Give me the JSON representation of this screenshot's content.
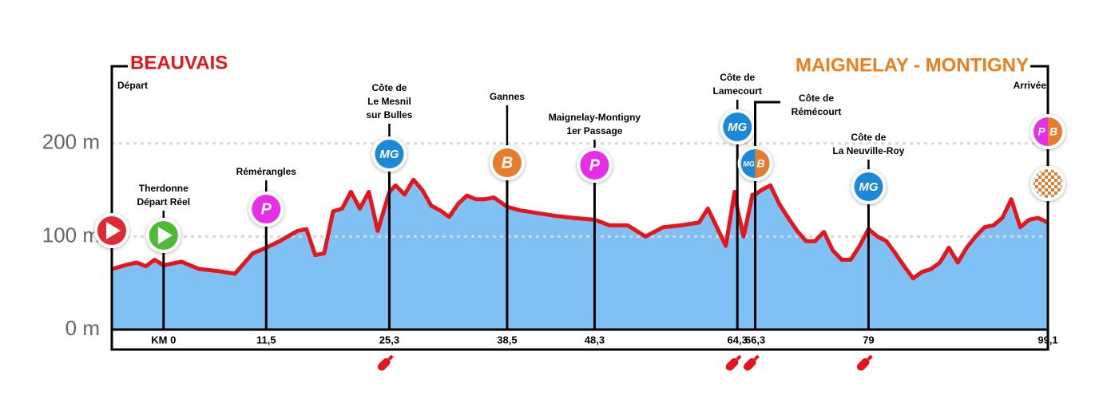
{
  "chart_data": {
    "type": "area",
    "title_left": "BEAUVAIS",
    "title_right": "MAIGNELAY - MONTIGNY",
    "title_left_color": "#e8141c",
    "title_right_color": "#ef7d1a",
    "line_color": "#e8141c",
    "fill_color": "#7fc0f5",
    "xlim": [
      -5.8,
      99.1
    ],
    "ylim": [
      0,
      283
    ],
    "yticks": [
      {
        "value": 0,
        "label": "0 m"
      },
      {
        "value": 100,
        "label": "100 m"
      },
      {
        "value": 200,
        "label": "200 m"
      }
    ],
    "grid": true,
    "xticks": [
      {
        "value": 0,
        "label": "KM 0"
      },
      {
        "value": 11.5,
        "label": "11,5"
      },
      {
        "value": 25.3,
        "label": "25,3"
      },
      {
        "value": 38.5,
        "label": "38,5"
      },
      {
        "value": 48.3,
        "label": "48,3"
      },
      {
        "value": 64.3,
        "label": "64,3"
      },
      {
        "value": 66.3,
        "label": "66,3"
      },
      {
        "value": 79,
        "label": "79"
      },
      {
        "value": 99.1,
        "label": "99,1"
      }
    ],
    "x": [
      -5.8,
      -4,
      -3,
      -2,
      -1,
      0,
      2,
      4,
      6,
      8,
      10,
      11.5,
      13,
      15,
      16,
      17,
      18,
      19,
      20,
      21,
      22,
      23,
      24,
      25.3,
      26,
      27,
      28,
      29,
      30,
      31,
      32,
      33,
      34,
      35,
      36,
      37,
      38.5,
      40,
      42,
      44,
      46,
      48.3,
      50,
      52,
      54,
      56,
      58,
      60,
      61,
      62,
      63,
      64,
      64.3,
      65,
      66,
      66.3,
      67,
      68,
      69,
      70,
      71,
      72,
      73,
      74,
      75,
      76,
      77,
      78,
      79,
      80,
      81,
      82,
      83,
      84,
      85,
      86,
      87,
      88,
      89,
      90,
      91,
      92,
      93,
      94,
      95,
      96,
      97,
      98,
      99.1
    ],
    "values": [
      65,
      70,
      72,
      68,
      75,
      69,
      73,
      65,
      63,
      60,
      82,
      88,
      95,
      106,
      108,
      80,
      82,
      127,
      130,
      148,
      130,
      148,
      106,
      148,
      155,
      145,
      161,
      150,
      133,
      128,
      121,
      135,
      144,
      140,
      140,
      142,
      132,
      128,
      125,
      122,
      120,
      118,
      112,
      112,
      100,
      110,
      112,
      115,
      130,
      110,
      90,
      148,
      130,
      100,
      145,
      145,
      150,
      155,
      135,
      120,
      106,
      95,
      95,
      105,
      85,
      75,
      75,
      90,
      108,
      100,
      95,
      82,
      68,
      55,
      62,
      65,
      72,
      88,
      72,
      88,
      100,
      110,
      112,
      120,
      140,
      110,
      118,
      120,
      115
    ],
    "icon_colors": {
      "MG": "#1e88d8",
      "P": "#e62ee6",
      "B": "#e87b2e"
    },
    "waypoints": [
      {
        "name": [
          "Départ"
        ],
        "km": -5.8,
        "icons": []
      },
      {
        "name": [
          "Therdonne",
          "Départ Réel"
        ],
        "km": 0,
        "icons": []
      },
      {
        "name": [
          "Rémérangles"
        ],
        "km": 11.5,
        "icons": [
          "P"
        ]
      },
      {
        "name": [
          "Côte de",
          "Le Mesnil",
          "sur Bulles"
        ],
        "km": 25.3,
        "icons": [
          "MG"
        ],
        "climb": true
      },
      {
        "name": [
          "Gannes"
        ],
        "km": 38.5,
        "icons": [
          "B"
        ]
      },
      {
        "name": [
          "Maignelay-Montigny",
          "1er Passage"
        ],
        "km": 48.3,
        "icons": [
          "P"
        ]
      },
      {
        "name": [
          "Côte de",
          "Lamecourt"
        ],
        "km": 64.3,
        "icons": [
          "MG"
        ],
        "climb": true
      },
      {
        "name": [
          "Côte de",
          "Rémécourt"
        ],
        "km": 66.3,
        "icons": [
          "MG",
          "B"
        ],
        "climb": true
      },
      {
        "name": [
          "Côte de",
          "La Neuville-Roy"
        ],
        "km": 79,
        "icons": [
          "MG"
        ],
        "climb": true
      },
      {
        "name": [
          "Arrivée"
        ],
        "km": 99.1,
        "icons": [
          "P",
          "B"
        ]
      }
    ]
  }
}
